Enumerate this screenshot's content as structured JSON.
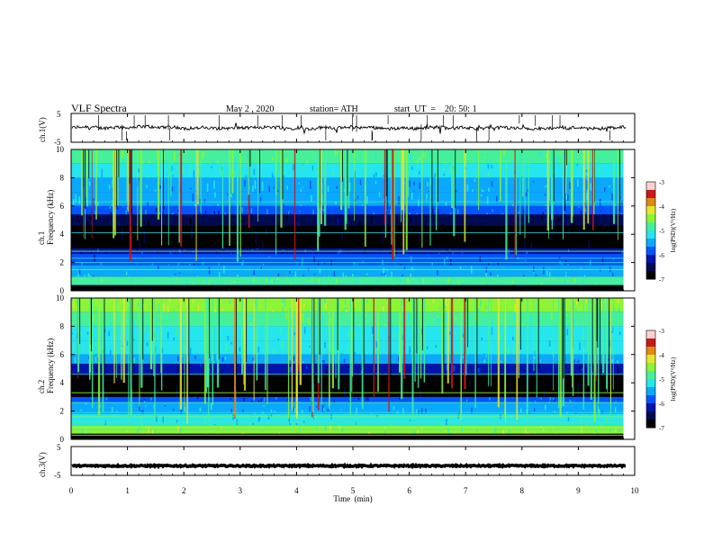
{
  "header": {
    "title": "VLF  Spectra",
    "date": "May 2  , 2020",
    "station": "station= ATH",
    "start": "start  UT  =    20: 50: 1"
  },
  "colors": {
    "spectrogram_scale": [
      "#000000",
      "#000a50",
      "#0015a8",
      "#0055ff",
      "#0aa8ff",
      "#25e6ee",
      "#45f09a",
      "#8cf535",
      "#e4e62e",
      "#e08a12",
      "#c81818",
      "#ffd2d2"
    ],
    "trace": "#000000",
    "axes": "#000000"
  },
  "chart_data": [
    {
      "type": "line",
      "name": "ch1-timeseries",
      "ylabel": "ch.1(V)",
      "ylim": [
        -5,
        5
      ],
      "yticks": [
        "5",
        "-5"
      ],
      "xlim": [
        0,
        10
      ],
      "approx_level": 0,
      "approx_range": [
        -1.5,
        1.5
      ]
    },
    {
      "type": "heatmap",
      "name": "ch1-spectrogram",
      "ylabel": "ch.1\nFrequency (kHz)",
      "ylim": [
        0,
        10
      ],
      "yticks": [
        "0",
        "2",
        "4",
        "6",
        "8",
        "10"
      ],
      "xlim": [
        0,
        9.8
      ],
      "colorbar": {
        "label": "log(PSD)(V²/Hz)",
        "range": [
          -7,
          -3
        ],
        "ticks": [
          "-3",
          "-4",
          "-5",
          "-6",
          "-7"
        ]
      }
    },
    {
      "type": "heatmap",
      "name": "ch2-spectrogram",
      "ylabel": "ch.2\nFrequency (kHz)",
      "ylim": [
        0,
        10
      ],
      "yticks": [
        "0",
        "2",
        "4",
        "6",
        "8",
        "10"
      ],
      "xlim": [
        0,
        9.8
      ],
      "colorbar": {
        "label": "log(PSD)(V²/Hz)",
        "range": [
          -7,
          -3
        ],
        "ticks": [
          "-3",
          "-4",
          "-5",
          "-6",
          "-7"
        ]
      }
    },
    {
      "type": "line",
      "name": "ch3-timeseries",
      "ylabel": "ch.3(V)",
      "ylim": [
        -5,
        5
      ],
      "yticks": [
        "5",
        "-5"
      ],
      "xlim": [
        0,
        10
      ],
      "approx_level": -1.7
    }
  ],
  "xaxis": {
    "label": "Time  (min)",
    "ticks": [
      "0",
      "1",
      "2",
      "3",
      "4",
      "5",
      "6",
      "7",
      "8",
      "9",
      "10"
    ],
    "range": [
      0,
      10
    ]
  }
}
